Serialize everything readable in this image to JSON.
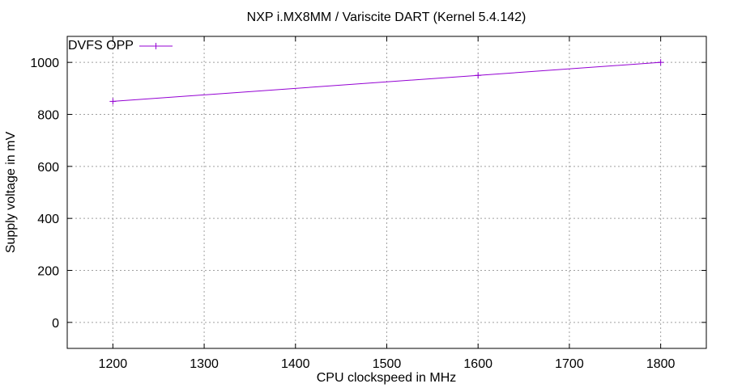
{
  "chart_data": {
    "type": "line",
    "title": "NXP i.MX8MM / Variscite DART (Kernel 5.4.142)",
    "xlabel": "CPU clockspeed in MHz",
    "ylabel": "Supply voltage in mV",
    "xlim": [
      1150,
      1850
    ],
    "ylim": [
      -100,
      1100
    ],
    "xticks": [
      1200,
      1300,
      1400,
      1500,
      1600,
      1700,
      1800
    ],
    "yticks": [
      0,
      200,
      400,
      600,
      800,
      1000
    ],
    "grid": true,
    "legend_position": "top-left",
    "series": [
      {
        "name": "DVFS OPP",
        "color": "#9400d3",
        "marker": "plus",
        "x": [
          1200,
          1600,
          1800
        ],
        "y": [
          850,
          950,
          1000
        ]
      }
    ]
  }
}
